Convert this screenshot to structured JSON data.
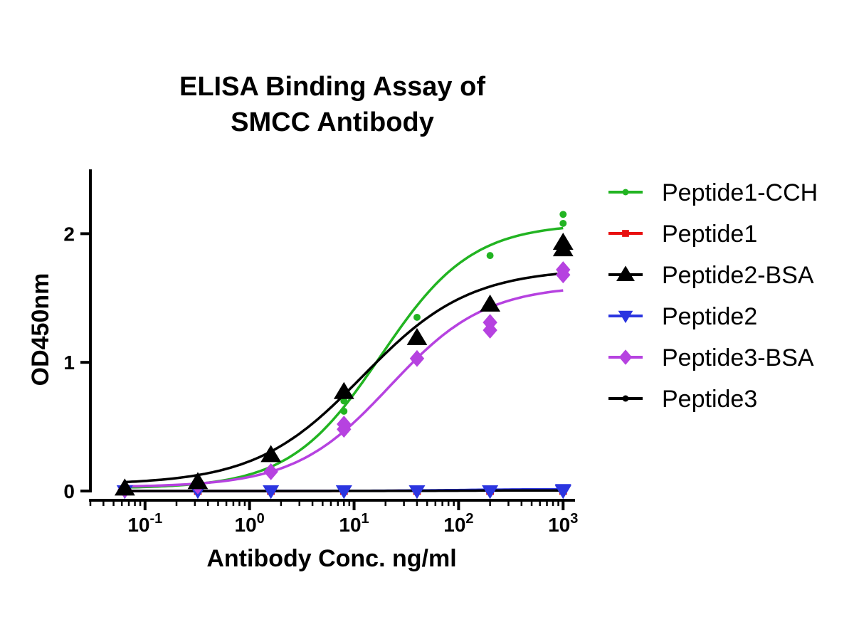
{
  "chart_data": {
    "type": "scatter",
    "title": [
      "ELISA Binding Assay of",
      "SMCC Antibody"
    ],
    "xlabel": "Antibody Conc. ng/ml",
    "ylabel": "OD450nm",
    "xscale": "log",
    "xlim": [
      0.03,
      1300
    ],
    "ylim": [
      0,
      2.5
    ],
    "xticks": [
      {
        "value": 0.1,
        "base": "10",
        "exp": "-1"
      },
      {
        "value": 1,
        "base": "10",
        "exp": "0"
      },
      {
        "value": 10,
        "base": "10",
        "exp": "1"
      },
      {
        "value": 100,
        "base": "10",
        "exp": "2"
      },
      {
        "value": 1000,
        "base": "10",
        "exp": "3"
      }
    ],
    "yticks": [
      0,
      1,
      2
    ],
    "grid": false,
    "legend_position": "right",
    "x": [
      0.064,
      0.32,
      1.6,
      8,
      40,
      200,
      1000
    ],
    "series": [
      {
        "name": "Peptide1-CCH",
        "color": "#22b422",
        "marker": "circle",
        "points": [
          [
            0.064,
            0.02
          ],
          [
            0.32,
            0.05
          ],
          [
            1.6,
            0.17
          ],
          [
            8,
            0.62
          ],
          [
            8,
            0.7
          ],
          [
            40,
            1.35
          ],
          [
            200,
            1.83
          ],
          [
            1000,
            2.08
          ],
          [
            1000,
            2.15
          ]
        ],
        "fit": {
          "bottom": 0.02,
          "top": 2.08,
          "ec50": 18,
          "hill": 1.0
        }
      },
      {
        "name": "Peptide1",
        "color": "#e81010",
        "marker": "square",
        "points": [
          [
            0.064,
            0.0
          ],
          [
            0.32,
            0.0
          ],
          [
            1.6,
            0.0
          ],
          [
            8,
            0.0
          ],
          [
            40,
            0.0
          ],
          [
            200,
            0.0
          ],
          [
            1000,
            0.0
          ]
        ],
        "fit": {
          "bottom": 0.0,
          "top": 0.01,
          "ec50": 100,
          "hill": 1.0
        }
      },
      {
        "name": "Peptide2-BSA",
        "color": "#000000",
        "marker": "triangle-up",
        "points": [
          [
            0.064,
            0.02
          ],
          [
            0.32,
            0.07
          ],
          [
            1.6,
            0.28
          ],
          [
            8,
            0.77
          ],
          [
            40,
            1.19
          ],
          [
            200,
            1.45
          ],
          [
            1000,
            1.88
          ],
          [
            1000,
            1.93
          ]
        ],
        "fit": {
          "bottom": 0.05,
          "top": 1.73,
          "ec50": 12,
          "hill": 0.85
        }
      },
      {
        "name": "Peptide2",
        "color": "#2b35e0",
        "marker": "triangle-down",
        "points": [
          [
            0.064,
            0.0
          ],
          [
            0.32,
            0.0
          ],
          [
            1.6,
            0.0
          ],
          [
            8,
            0.0
          ],
          [
            40,
            0.0
          ],
          [
            200,
            0.0
          ],
          [
            1000,
            0.0
          ],
          [
            1000,
            0.01
          ]
        ],
        "fit": {
          "bottom": 0.0,
          "top": 0.015,
          "ec50": 100,
          "hill": 1.0
        }
      },
      {
        "name": "Peptide3-BSA",
        "color": "#b642e0",
        "marker": "diamond",
        "points": [
          [
            0.064,
            0.01
          ],
          [
            0.32,
            0.04
          ],
          [
            1.6,
            0.15
          ],
          [
            8,
            0.48
          ],
          [
            8,
            0.52
          ],
          [
            40,
            1.03
          ],
          [
            200,
            1.25
          ],
          [
            200,
            1.31
          ],
          [
            1000,
            1.68
          ],
          [
            1000,
            1.72
          ]
        ],
        "fit": {
          "bottom": 0.03,
          "top": 1.6,
          "ec50": 22,
          "hill": 0.95
        }
      },
      {
        "name": "Peptide3",
        "color": "#000000",
        "marker": "circle",
        "points": [
          [
            0.064,
            0.0
          ],
          [
            0.32,
            0.0
          ],
          [
            1.6,
            0.0
          ],
          [
            8,
            0.0
          ],
          [
            40,
            0.0
          ],
          [
            200,
            0.0
          ],
          [
            1000,
            0.0
          ]
        ],
        "fit": {
          "bottom": 0.0,
          "top": 0.005,
          "ec50": 100,
          "hill": 1.0
        }
      }
    ]
  }
}
